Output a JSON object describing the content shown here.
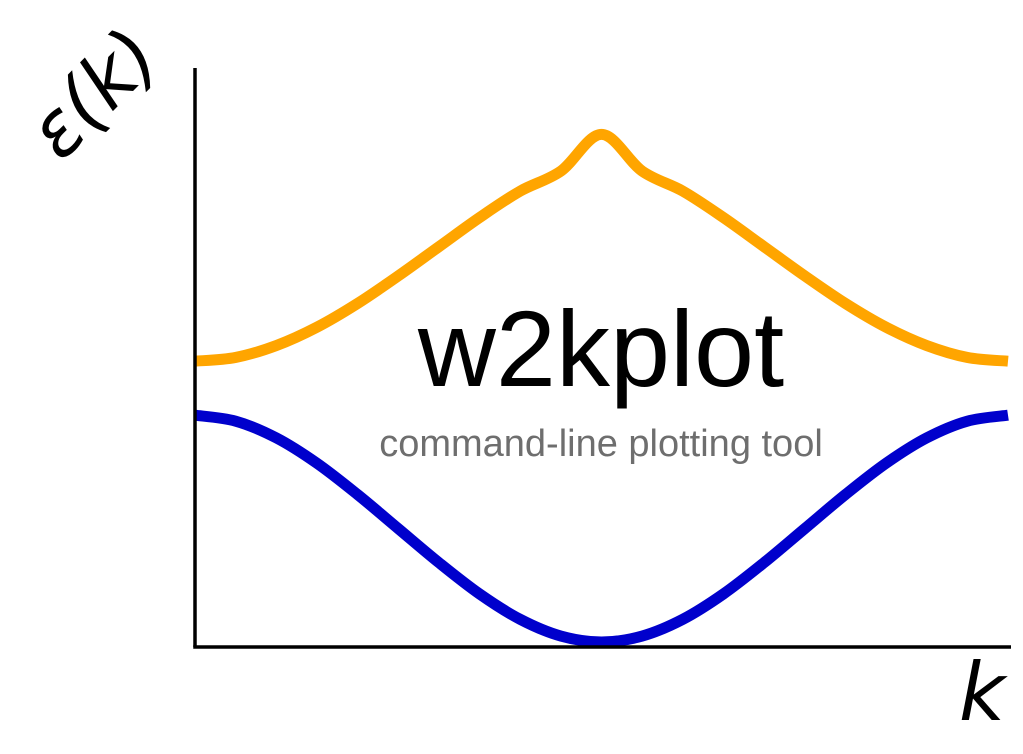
{
  "chart_data": {
    "type": "line",
    "title": "w2kplot",
    "subtitle": "command-line plotting tool",
    "xlabel": "k",
    "ylabel": "ε(k)",
    "xlim": [
      0,
      1
    ],
    "ylim": [
      0,
      1
    ],
    "grid": false,
    "x": [
      0,
      0.05,
      0.1,
      0.15,
      0.2,
      0.25,
      0.3,
      0.35,
      0.4,
      0.45,
      0.5,
      0.55,
      0.6,
      0.65,
      0.7,
      0.75,
      0.8,
      0.85,
      0.9,
      0.95,
      1
    ],
    "series": [
      {
        "color": "#FFA500",
        "values": [
          0.52,
          0.527,
          0.549,
          0.583,
          0.627,
          0.678,
          0.732,
          0.786,
          0.835,
          0.872,
          0.94,
          0.872,
          0.835,
          0.786,
          0.732,
          0.678,
          0.627,
          0.583,
          0.549,
          0.527,
          0.52
        ]
      },
      {
        "color": "#0000CC",
        "values": [
          0.42,
          0.409,
          0.378,
          0.331,
          0.273,
          0.21,
          0.147,
          0.089,
          0.042,
          0.011,
          0.0,
          0.011,
          0.042,
          0.089,
          0.147,
          0.21,
          0.273,
          0.331,
          0.378,
          0.409,
          0.42
        ]
      }
    ]
  },
  "colors": {
    "axis": "#000000",
    "subtitle": "#6E6E6E"
  }
}
